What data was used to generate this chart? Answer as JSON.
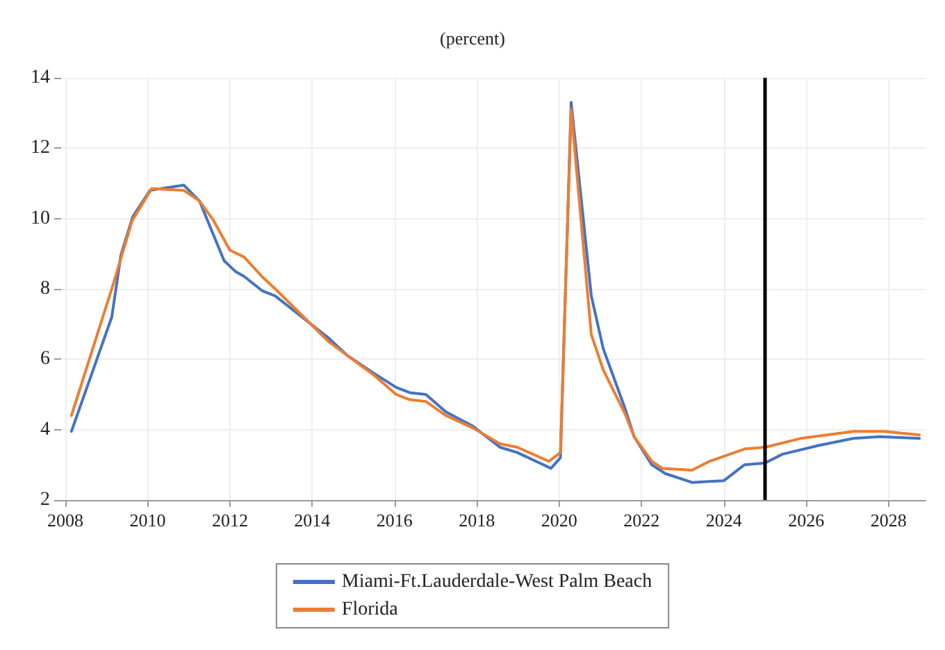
{
  "chart_data": {
    "type": "line",
    "title": "(percent)",
    "xlim": [
      2007.9,
      2028.9
    ],
    "xticks": [
      2008,
      2010,
      2012,
      2014,
      2016,
      2018,
      2020,
      2022,
      2024,
      2026,
      2028
    ],
    "ylim": [
      2,
      14
    ],
    "yticks": [
      2,
      4,
      6,
      8,
      10,
      12,
      14
    ],
    "grid": true,
    "legend": "bottom",
    "series": [
      {
        "name": "Miami-Ft.Lauderdale-West Palm Beach",
        "color": "#4472c4",
        "x": [
          2008.15,
          2009.13,
          2009.35,
          2009.64,
          2010.06,
          2010.88,
          2011.26,
          2011.86,
          2012.13,
          2012.35,
          2012.78,
          2013.1,
          2013.75,
          2014.4,
          2014.86,
          2015.5,
          2016.04,
          2016.37,
          2016.76,
          2017.25,
          2017.9,
          2018.56,
          2018.98,
          2019.8,
          2020.03,
          2020.29,
          2020.78,
          2021.07,
          2021.6,
          2021.82,
          2022.25,
          2022.58,
          2023.23,
          2024.0,
          2024.5,
          2025.0,
          2025.42,
          2026.3,
          2027.15,
          2027.8,
          2028.75
        ],
        "values": [
          3.95,
          7.2,
          8.95,
          10.05,
          10.8,
          10.95,
          10.5,
          8.8,
          8.5,
          8.35,
          7.95,
          7.8,
          7.2,
          6.6,
          6.1,
          5.6,
          5.2,
          5.05,
          5.0,
          4.5,
          4.1,
          3.5,
          3.35,
          2.9,
          3.2,
          13.3,
          7.8,
          6.3,
          4.6,
          3.8,
          3.0,
          2.75,
          2.5,
          2.55,
          3.0,
          3.05,
          3.3,
          3.55,
          3.75,
          3.8,
          3.75
        ]
      },
      {
        "name": "Florida",
        "color": "#ed7d31",
        "x": [
          2008.15,
          2009.13,
          2009.63,
          2010.1,
          2010.88,
          2011.26,
          2011.6,
          2012.0,
          2012.35,
          2012.78,
          2013.1,
          2013.75,
          2014.4,
          2014.86,
          2015.5,
          2016.04,
          2016.37,
          2016.76,
          2017.25,
          2017.9,
          2018.56,
          2018.98,
          2019.75,
          2020.03,
          2020.29,
          2020.78,
          2021.07,
          2021.6,
          2021.82,
          2022.25,
          2022.5,
          2023.23,
          2023.65,
          2024.5,
          2025.0,
          2025.87,
          2027.15,
          2027.9,
          2028.75
        ],
        "values": [
          4.4,
          8.0,
          9.95,
          10.85,
          10.8,
          10.5,
          9.95,
          9.1,
          8.9,
          8.35,
          8.0,
          7.25,
          6.5,
          6.1,
          5.55,
          5.0,
          4.85,
          4.8,
          4.4,
          4.05,
          3.6,
          3.5,
          3.1,
          3.35,
          13.1,
          6.7,
          5.7,
          4.45,
          3.8,
          3.1,
          2.9,
          2.85,
          3.1,
          3.45,
          3.5,
          3.75,
          3.95,
          3.95,
          3.85
        ]
      }
    ],
    "ref_lines": [
      {
        "axis": "x",
        "value": 2025,
        "color": "#000000"
      }
    ]
  }
}
